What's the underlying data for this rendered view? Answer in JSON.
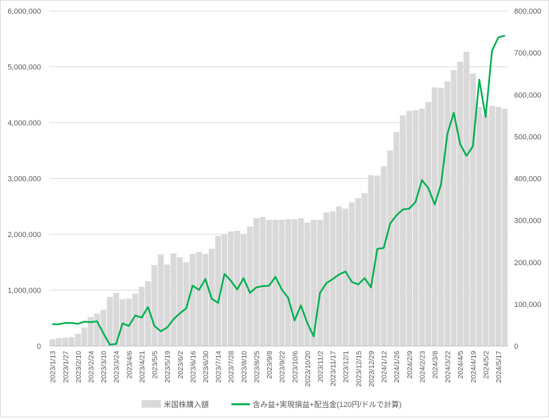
{
  "chart_data": {
    "type": "bar+line",
    "x": [
      "2023/1/13",
      "2023/1/20",
      "2023/1/27",
      "2023/2/3",
      "2023/2/10",
      "2023/2/17",
      "2023/2/24",
      "2023/3/3",
      "2023/3/10",
      "2023/3/17",
      "2023/3/24",
      "2023/3/31",
      "2023/4/6",
      "2023/4/14",
      "2023/4/21",
      "2023/4/28",
      "2023/5/5",
      "2023/5/12",
      "2023/5/19",
      "2023/5/26",
      "2023/6/2",
      "2023/6/9",
      "2023/6/16",
      "2023/6/23",
      "2023/6/30",
      "2023/7/7",
      "2023/7/14",
      "2023/7/21",
      "2023/7/28",
      "2023/8/4",
      "2023/8/10",
      "2023/8/18",
      "2023/8/25",
      "2023/9/1",
      "2023/9/8",
      "2023/9/15",
      "2023/9/22",
      "2023/9/29",
      "2023/10/6",
      "2023/10/13",
      "2023/10/20",
      "2023/10/27",
      "2023/11/2",
      "2023/11/10",
      "2023/11/17",
      "2023/11/24",
      "2023/12/1",
      "2023/12/8",
      "2023/12/15",
      "2023/12/22",
      "2023/12/29",
      "2024/1/5",
      "2024/1/12",
      "2024/1/19",
      "2024/1/26",
      "2024/2/2",
      "2024/2/9",
      "2024/2/16",
      "2024/2/23",
      "2024/3/1",
      "2024/3/8",
      "2024/3/15",
      "2024/3/22",
      "2024/3/29",
      "2024/4/5",
      "2024/4/12",
      "2024/4/19",
      "2024/4/26",
      "2024/5/2",
      "2024/5/10",
      "2024/5/17",
      "2024/5/24"
    ],
    "x_tick_labels": [
      "2023/1/13",
      "2023/1/27",
      "2023/2/10",
      "2023/2/24",
      "2023/3/10",
      "2023/3/24",
      "2023/4/6",
      "2023/4/21",
      "2023/5/5",
      "2023/5/19",
      "2023/6/2",
      "2023/6/16",
      "2023/6/30",
      "2023/7/14",
      "2023/7/28",
      "2023/8/10",
      "2023/8/25",
      "2023/9/8",
      "2023/9/22",
      "2023/10/6",
      "2023/10/20",
      "2023/11/2",
      "2023/11/17",
      "2023/12/1",
      "2023/12/15",
      "2023/12/29",
      "2024/1/12",
      "2024/1/26",
      "2024/2/9",
      "2024/2/23",
      "2024/3/8",
      "2024/3/22",
      "2024/4/5",
      "2024/4/19",
      "2024/5/2",
      "2024/5/17"
    ],
    "series": [
      {
        "name": "米国株購入額",
        "kind": "bar",
        "axis": "left",
        "color": "#d9d9d9",
        "values": [
          120000,
          140000,
          150000,
          160000,
          220000,
          330000,
          520000,
          580000,
          650000,
          880000,
          950000,
          840000,
          850000,
          940000,
          1060000,
          1160000,
          1450000,
          1640000,
          1460000,
          1660000,
          1590000,
          1500000,
          1650000,
          1680000,
          1650000,
          1740000,
          1970000,
          2000000,
          2050000,
          2060000,
          2000000,
          2140000,
          2290000,
          2310000,
          2260000,
          2260000,
          2260000,
          2270000,
          2270000,
          2290000,
          2210000,
          2260000,
          2260000,
          2390000,
          2410000,
          2500000,
          2460000,
          2570000,
          2650000,
          2740000,
          3060000,
          3050000,
          3220000,
          3500000,
          3830000,
          4130000,
          4210000,
          4220000,
          4250000,
          4370000,
          4630000,
          4620000,
          4740000,
          4940000,
          5090000,
          5270000,
          4880000,
          4280000,
          4140000,
          4300000,
          4280000,
          4250000
        ]
      },
      {
        "name": "含み益+実現損益+配当金(120円/ドルで計算)",
        "kind": "line",
        "axis": "right",
        "color": "#00b050",
        "values": [
          52000,
          52000,
          55000,
          55000,
          53000,
          58000,
          57000,
          59000,
          30000,
          3000,
          5000,
          54000,
          48000,
          73000,
          68000,
          93000,
          48000,
          35000,
          44000,
          64000,
          78000,
          90000,
          144000,
          134000,
          160000,
          113000,
          103000,
          172000,
          156000,
          135000,
          162000,
          127000,
          140000,
          143000,
          144000,
          165000,
          135000,
          115000,
          61000,
          97000,
          55000,
          23000,
          127000,
          150000,
          160000,
          171000,
          178000,
          153000,
          147000,
          162000,
          140000,
          232000,
          234000,
          292000,
          312000,
          326000,
          328000,
          344000,
          396000,
          377000,
          338000,
          386000,
          507000,
          557000,
          482000,
          454000,
          477000,
          636000,
          547000,
          705000,
          737000,
          741000
        ]
      }
    ],
    "y_left": {
      "min": 0,
      "max": 6000000,
      "ticks": [
        "0",
        "1,000,000",
        "2,000,000",
        "3,000,000",
        "4,000,000",
        "5,000,000",
        "6,000,000"
      ]
    },
    "y_right": {
      "min": 0,
      "max": 800000,
      "ticks": [
        "0",
        "100,000",
        "200,000",
        "300,000",
        "400,000",
        "500,000",
        "600,000",
        "700,000",
        "800,000"
      ]
    },
    "grid": true,
    "legend_position": "bottom"
  }
}
